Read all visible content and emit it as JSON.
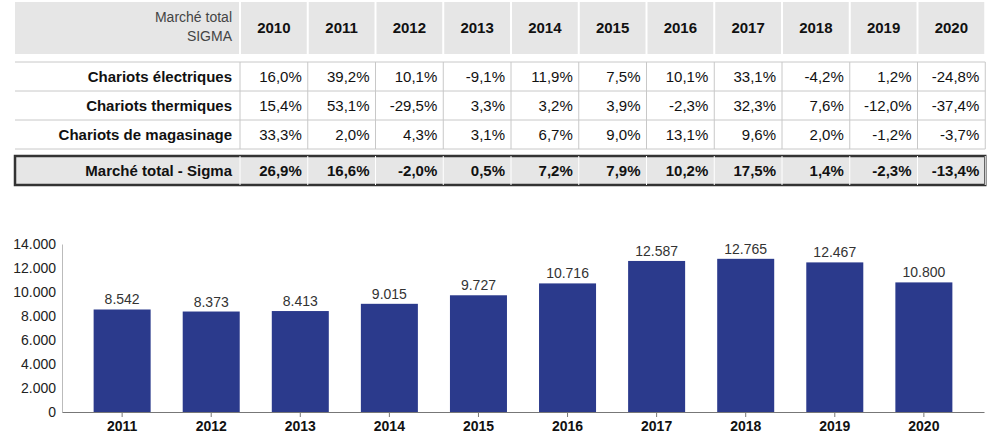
{
  "table": {
    "header_label": [
      "Marché total",
      "SIGMA"
    ],
    "columns": [
      "2010",
      "2011",
      "2012",
      "2013",
      "2014",
      "2015",
      "2016",
      "2017",
      "2018",
      "2019",
      "2020"
    ],
    "rows": [
      {
        "label": "Chariots électriques",
        "cells": [
          "16,0%",
          "39,2%",
          "10,1%",
          "-9,1%",
          "11,9%",
          "7,5%",
          "10,1%",
          "33,1%",
          "-4,2%",
          "1,2%",
          "-24,8%"
        ]
      },
      {
        "label": "Chariots thermiques",
        "cells": [
          "15,4%",
          "53,1%",
          "-29,5%",
          "3,3%",
          "3,2%",
          "3,9%",
          "-2,3%",
          "32,3%",
          "7,6%",
          "-12,0%",
          "-37,4%"
        ]
      },
      {
        "label": "Chariots de magasinage",
        "cells": [
          "33,3%",
          "2,0%",
          "4,3%",
          "3,1%",
          "6,7%",
          "9,0%",
          "13,1%",
          "9,6%",
          "2,0%",
          "-1,2%",
          "-3,7%"
        ]
      },
      {
        "label": "Marché total - Sigma",
        "cells": [
          "26,9%",
          "16,6%",
          "-2,0%",
          "0,5%",
          "7,2%",
          "7,9%",
          "10,2%",
          "17,5%",
          "1,4%",
          "-2,3%",
          "-13,4%"
        ]
      }
    ]
  },
  "chart_data": {
    "type": "bar",
    "categories": [
      "2011",
      "2012",
      "2013",
      "2014",
      "2015",
      "2016",
      "2017",
      "2018",
      "2019",
      "2020"
    ],
    "values": [
      8542,
      8373,
      8413,
      9015,
      9727,
      10716,
      12587,
      12765,
      12467,
      10800
    ],
    "value_labels": [
      "8.542",
      "8.373",
      "8.413",
      "9.015",
      "9.727",
      "10.716",
      "12.587",
      "12.765",
      "12.467",
      "10.800"
    ],
    "color": "#2b3a8c",
    "ylim": [
      0,
      14000
    ],
    "yticks": [
      0,
      {
        "value": 2000,
        "label": "2.000"
      },
      {
        "value": 4000,
        "label": "4.000"
      },
      {
        "value": 6000,
        "label": "6.000"
      },
      {
        "value": 8000,
        "label": "8.000"
      },
      {
        "value": 10000,
        "label": "10.000"
      },
      {
        "value": 12000,
        "label": "12.000"
      },
      {
        "value": 14000,
        "label": "14.000"
      }
    ],
    "grid": false,
    "data_labels": true
  }
}
